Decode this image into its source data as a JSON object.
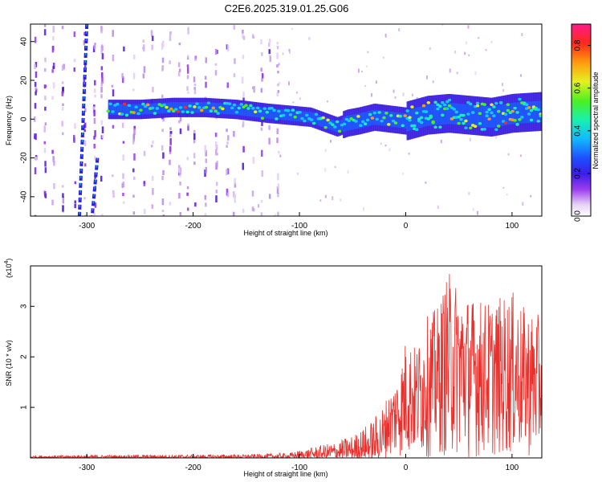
{
  "title": "C2E6.2025.319.01.25.G06",
  "chart_data": [
    {
      "type": "heatmap",
      "xlabel": "Height of straight line (km)",
      "ylabel": "Frequency (Hz)",
      "xlim": [
        -353,
        128
      ],
      "ylim": [
        -50,
        49
      ],
      "xticks": [
        -300,
        -200,
        -100,
        0,
        100
      ],
      "yticks": [
        -40,
        -20,
        0,
        20,
        40
      ],
      "colorbar": {
        "label": "Normalized spectral amplitude",
        "range": [
          0,
          0.9
        ],
        "ticks": [
          "0.0",
          "0.2",
          "0.4",
          "0.6",
          "0.8"
        ],
        "tick_values": [
          0.0,
          0.2,
          0.4,
          0.6,
          0.8
        ]
      },
      "ridge": {
        "x": [
          -280,
          -250,
          -220,
          -190,
          -160,
          -130,
          -110,
          -90,
          -75,
          -65,
          -55,
          -45,
          -30,
          -15,
          0,
          20,
          40,
          60,
          80,
          100,
          128
        ],
        "freq": [
          5,
          5,
          6,
          6,
          5,
          3,
          2,
          1,
          -2,
          -4,
          -2,
          -1,
          1,
          0,
          -1,
          2,
          3,
          2,
          1,
          3,
          4
        ]
      },
      "streaks": [
        {
          "x_top": -300,
          "x_bottom": -307,
          "freq_top": 49,
          "freq_bottom": -50
        },
        {
          "x_top": -290,
          "x_bottom": -295,
          "freq_top": -20,
          "freq_bottom": -50
        }
      ]
    },
    {
      "type": "line",
      "xlabel": "Height of straight line (km)",
      "ylabel": "SNR (10 * v/v)",
      "y_multiplier": "(x10",
      "y_multiplier_exp": "4",
      "y_multiplier_close": ")",
      "xlim": [
        -353,
        128
      ],
      "ylim": [
        0,
        3.8
      ],
      "xticks": [
        -300,
        -200,
        -100,
        0,
        100
      ],
      "yticks": [
        1,
        2,
        3
      ],
      "color": "#e8302c",
      "envelope": {
        "x": [
          -353,
          -250,
          -150,
          -110,
          -90,
          -70,
          -50,
          -40,
          -30,
          -15,
          -5,
          0,
          10,
          20,
          30,
          40,
          60,
          80,
          100,
          110,
          128
        ],
        "y": [
          0.05,
          0.06,
          0.07,
          0.1,
          0.2,
          0.3,
          0.45,
          0.6,
          0.8,
          1.3,
          1.8,
          2.4,
          2.2,
          2.8,
          3.0,
          3.7,
          3.2,
          3.1,
          3.3,
          3.0,
          2.8
        ]
      }
    }
  ]
}
